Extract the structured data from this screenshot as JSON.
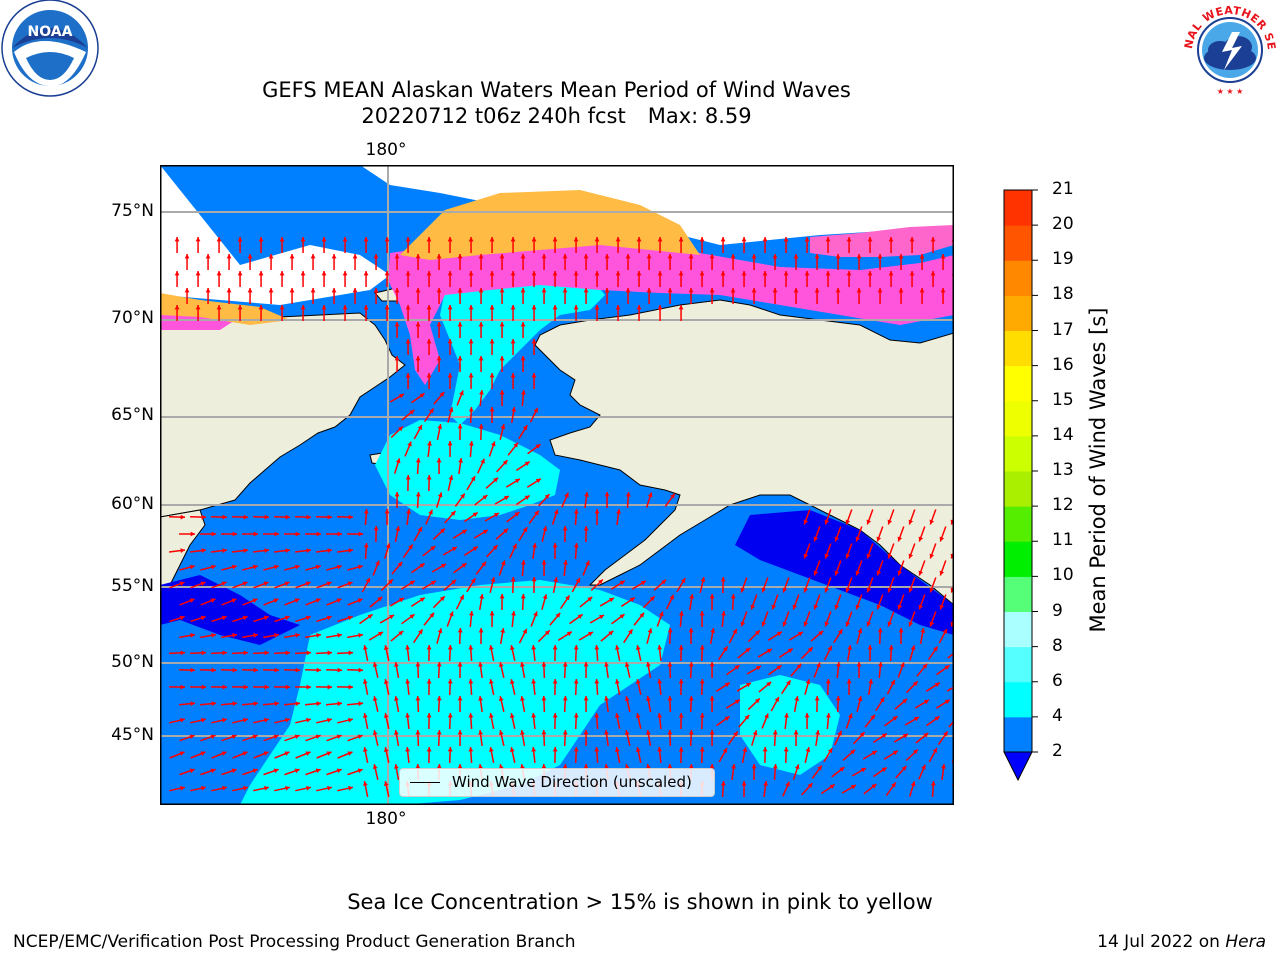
{
  "title": {
    "line1": "GEFS MEAN Alaskan Waters Mean Period of Wind Waves",
    "line2_run": "20220712 t06z 240h fcst",
    "line2_max": "Max: 8.59"
  },
  "logos": {
    "left": {
      "icon": "noaa-logo-icon",
      "text": "NOAA"
    },
    "right": {
      "icon": "nws-logo-icon",
      "text": "NATIONAL WEATHER SERVICE"
    }
  },
  "map": {
    "lon_label_top": "180°",
    "lon_label_bottom": "180°",
    "lat_labels": [
      "75°N",
      "70°N",
      "65°N",
      "60°N",
      "55°N",
      "50°N",
      "45°N"
    ],
    "legend_label": "Wind Wave Direction (unscaled)",
    "colors": {
      "land": "#eeeedc",
      "ocean_low": "#0080ff",
      "ocean_very_low": "#0000f0",
      "ocean_mid": "#00ffff",
      "ice_pink": "#ff55dd",
      "ice_orange": "#ffbb44",
      "arrow": "#ff0000"
    }
  },
  "colorbar": {
    "title": "Mean Period of Wind Waves [s]",
    "ticks": [
      "2",
      "4",
      "6",
      "8",
      "9",
      "10",
      "11",
      "12",
      "13",
      "14",
      "15",
      "16",
      "17",
      "18",
      "19",
      "20",
      "21"
    ],
    "colors": [
      "#0080ff",
      "#00ffff",
      "#55ffff",
      "#aaffff",
      "#55ff77",
      "#00ee00",
      "#55ee00",
      "#aaee00",
      "#ccff00",
      "#eeff00",
      "#ffff00",
      "#ffdd00",
      "#ffaa00",
      "#ff8800",
      "#ff5500",
      "#ff3300",
      "#ff0000"
    ],
    "under_color": "#0000ff"
  },
  "sea_ice_note": "Sea Ice Concentration > 15% is shown in pink to yellow",
  "footer": {
    "left": "NCEP/EMC/Verification Post Processing Product Generation Branch",
    "right_date": "14 Jul 2022 on",
    "right_host": "Hera"
  }
}
